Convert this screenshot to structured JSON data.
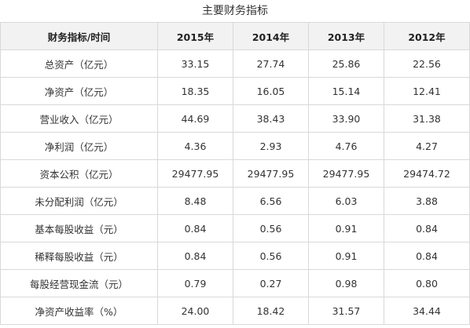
{
  "title": "主要财务指标",
  "table": {
    "headers": [
      "财务指标/时间",
      "2015年",
      "2014年",
      "2013年",
      "2012年"
    ],
    "rows": [
      {
        "label": "总资产（亿元）",
        "values": [
          "33.15",
          "27.74",
          "25.86",
          "22.56"
        ]
      },
      {
        "label": "净资产（亿元）",
        "values": [
          "18.35",
          "16.05",
          "15.14",
          "12.41"
        ]
      },
      {
        "label": "营业收入（亿元）",
        "values": [
          "44.69",
          "38.43",
          "33.90",
          "31.38"
        ]
      },
      {
        "label": "净利润（亿元）",
        "values": [
          "4.36",
          "2.93",
          "4.76",
          "4.27"
        ]
      },
      {
        "label": "资本公积（亿元）",
        "values": [
          "29477.95",
          "29477.95",
          "29477.95",
          "29474.72"
        ]
      },
      {
        "label": "未分配利润（亿元）",
        "values": [
          "8.48",
          "6.56",
          "6.03",
          "3.88"
        ]
      },
      {
        "label": "基本每股收益（元）",
        "values": [
          "0.84",
          "0.56",
          "0.91",
          "0.84"
        ]
      },
      {
        "label": "稀释每股收益（元）",
        "values": [
          "0.84",
          "0.56",
          "0.91",
          "0.84"
        ]
      },
      {
        "label": "每股经营现金流（元）",
        "values": [
          "0.79",
          "0.27",
          "0.98",
          "0.80"
        ]
      },
      {
        "label": "净资产收益率（%）",
        "values": [
          "24.00",
          "18.42",
          "31.57",
          "34.44"
        ]
      }
    ]
  }
}
